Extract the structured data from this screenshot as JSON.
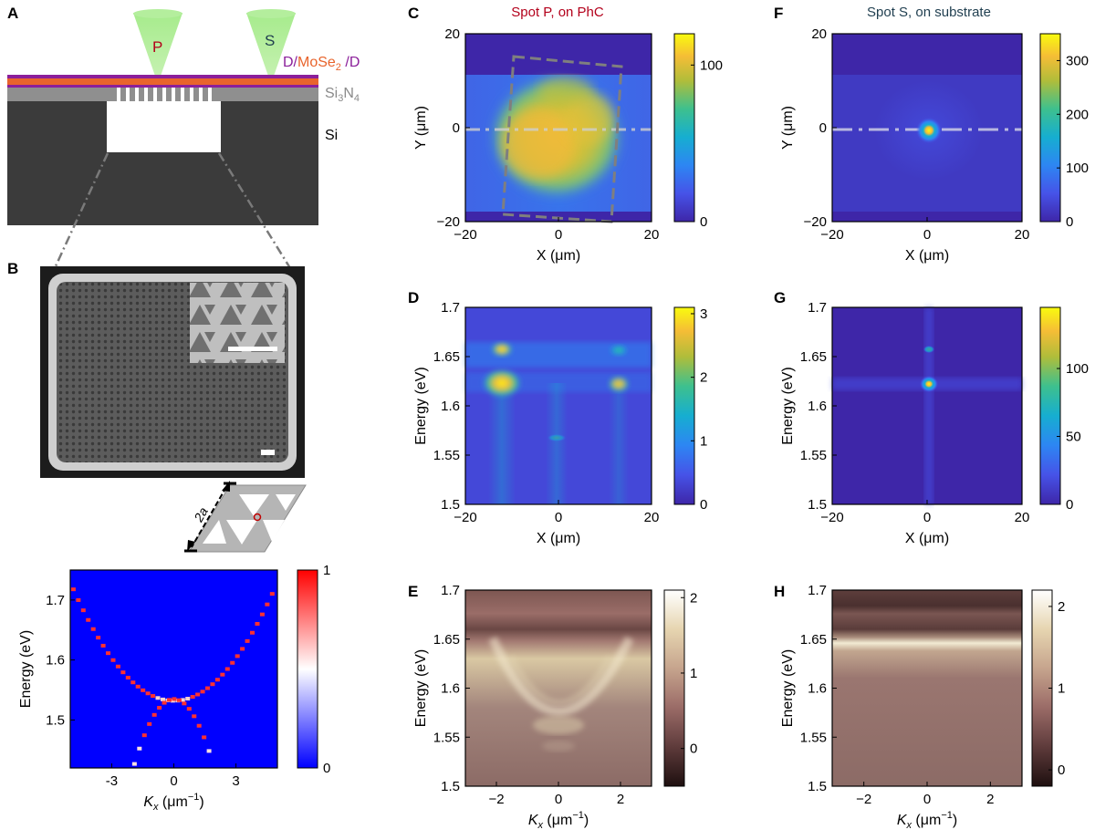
{
  "panels": {
    "A": {
      "label": "A",
      "tip_p": "P",
      "tip_s": "S",
      "layer_d1": "D/",
      "layer_mose": "MoSe",
      "layer_mose_sub": "2",
      "layer_d2": " /D",
      "si3n4_a": "Si",
      "si3n4_sub1": "3",
      "si3n4_b": "N",
      "si3n4_sub2": "4",
      "si": "Si"
    },
    "B": {
      "label": "B",
      "lattice_label": "2a"
    },
    "C": {
      "label": "C",
      "title": "Spot P, on PhC"
    },
    "D": {
      "label": "D"
    },
    "E": {
      "label": "E"
    },
    "F": {
      "label": "F",
      "title": "Spot S, on substrate"
    },
    "G": {
      "label": "G"
    },
    "H": {
      "label": "H"
    }
  },
  "colors": {
    "p_title": "#b3001b",
    "s_title": "#1f3e4f",
    "d_layer": "#8b1f9a",
    "mose_layer": "#e8642c",
    "si3n4_text": "#8a8a8a"
  },
  "chart_data": [
    {
      "id": "B-band",
      "type": "heatmap",
      "xlabel": "K",
      "xlabel_sub": "x",
      "xlabel_unit": " (μm",
      "xlabel_unit_sup": "−1",
      "xlabel_close": ")",
      "ylabel": "Energy (eV)",
      "xlim": [
        -5,
        5
      ],
      "ylim": [
        1.42,
        1.75
      ],
      "xticks": [
        "-3",
        "0",
        "3"
      ],
      "xtick_values": [
        -3,
        0,
        3
      ],
      "yticks": [
        "1.5",
        "1.6",
        "1.7"
      ],
      "ytick_values": [
        1.5,
        1.6,
        1.7
      ],
      "colorbar": {
        "range": [
          0,
          1
        ],
        "ticks": [
          "0",
          "1"
        ],
        "colormap": "blue-white-red"
      },
      "bands": {
        "upper": "E = 1.53 + 0.007·Kx² (approx.)",
        "lower_min": 1.42
      }
    },
    {
      "id": "C-map",
      "type": "heatmap",
      "xlabel": "X (μm)",
      "ylabel": "Y (μm)",
      "xlim": [
        -20,
        20
      ],
      "ylim": [
        -20,
        20
      ],
      "xticks": [
        "−20",
        "0",
        "20"
      ],
      "yticks": [
        "−20",
        "0",
        "20"
      ],
      "colorbar": {
        "range": [
          0,
          120
        ],
        "ticks": [
          "0",
          "100"
        ],
        "colormap": "parula"
      }
    },
    {
      "id": "D-spec",
      "type": "heatmap",
      "xlabel": "X (μm)",
      "ylabel": "Energy (eV)",
      "xlim": [
        -20,
        20
      ],
      "ylim": [
        1.5,
        1.7
      ],
      "xticks": [
        "−20",
        "0",
        "20"
      ],
      "yticks": [
        "1.5",
        "1.55",
        "1.6",
        "1.65",
        "1.7"
      ],
      "colorbar": {
        "range": [
          0,
          3.1
        ],
        "ticks": [
          "0",
          "1",
          "2",
          "3"
        ],
        "colormap": "parula"
      }
    },
    {
      "id": "E-kspace",
      "type": "heatmap",
      "xlabel": "K",
      "xlabel_sub": "x",
      "xlabel_unit": " (μm",
      "xlabel_unit_sup": "−1",
      "xlabel_close": ")",
      "ylabel": "Energy (eV)",
      "xlim": [
        -3,
        3
      ],
      "ylim": [
        1.5,
        1.7
      ],
      "xticks": [
        "−2",
        "0",
        "2"
      ],
      "yticks": [
        "1.5",
        "1.55",
        "1.6",
        "1.65",
        "1.7"
      ],
      "colorbar": {
        "range": [
          -0.5,
          2.1
        ],
        "ticks": [
          "0",
          "1",
          "2"
        ],
        "colormap": "pink"
      }
    },
    {
      "id": "F-map",
      "type": "heatmap",
      "xlabel": "X (μm)",
      "ylabel": "Y (μm)",
      "xlim": [
        -20,
        20
      ],
      "ylim": [
        -20,
        20
      ],
      "xticks": [
        "−20",
        "0",
        "20"
      ],
      "yticks": [
        "−20",
        "0",
        "20"
      ],
      "colorbar": {
        "range": [
          0,
          350
        ],
        "ticks": [
          "0",
          "100",
          "200",
          "300"
        ],
        "colormap": "parula"
      }
    },
    {
      "id": "G-spec",
      "type": "heatmap",
      "xlabel": "X (μm)",
      "ylabel": "Energy (eV)",
      "xlim": [
        -20,
        20
      ],
      "ylim": [
        1.5,
        1.7
      ],
      "xticks": [
        "−20",
        "0",
        "20"
      ],
      "yticks": [
        "1.5",
        "1.55",
        "1.6",
        "1.65",
        "1.7"
      ],
      "colorbar": {
        "range": [
          0,
          145
        ],
        "ticks": [
          "0",
          "50",
          "100"
        ],
        "colormap": "parula"
      }
    },
    {
      "id": "H-kspace",
      "type": "heatmap",
      "xlabel": "K",
      "xlabel_sub": "x",
      "xlabel_unit": " (μm",
      "xlabel_unit_sup": "−1",
      "xlabel_close": ")",
      "ylabel": "Energy (eV)",
      "xlim": [
        -3,
        3
      ],
      "ylim": [
        1.5,
        1.7
      ],
      "xticks": [
        "−2",
        "0",
        "2"
      ],
      "yticks": [
        "1.5",
        "1.55",
        "1.6",
        "1.65",
        "1.7"
      ],
      "colorbar": {
        "range": [
          -0.2,
          2.2
        ],
        "ticks": [
          "0",
          "1",
          "2"
        ],
        "colormap": "pink"
      }
    }
  ]
}
